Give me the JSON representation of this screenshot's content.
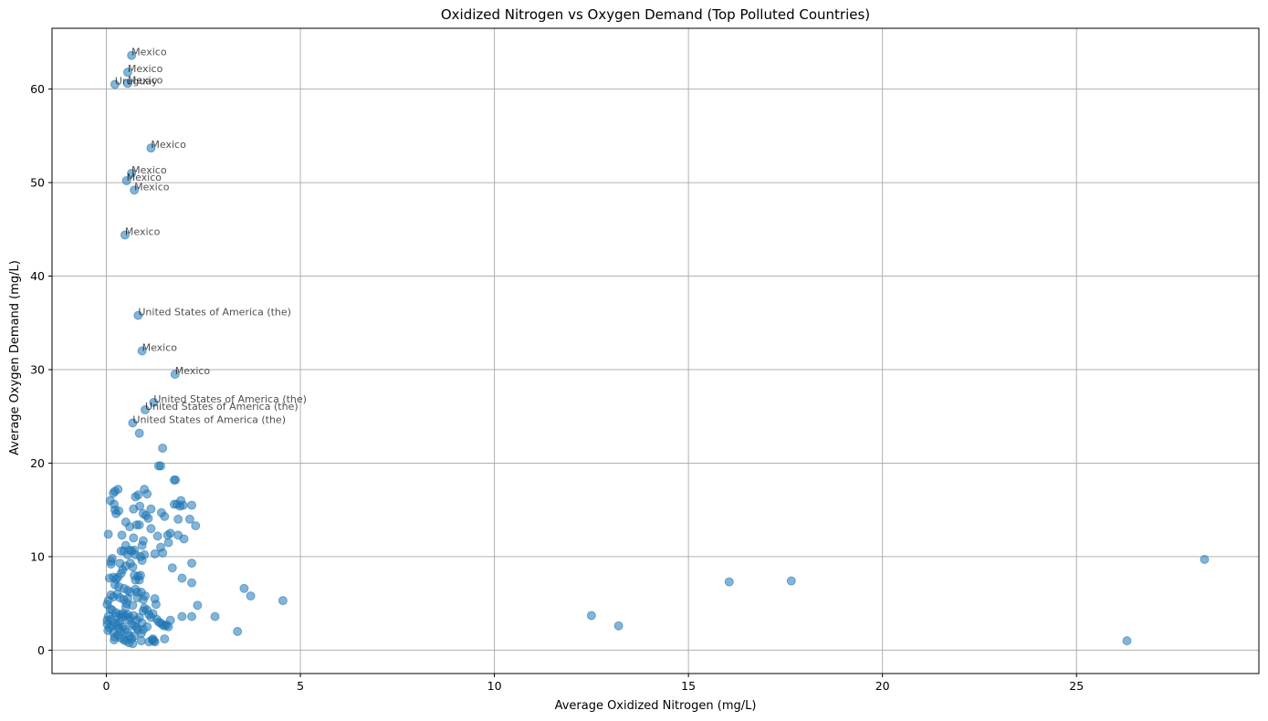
{
  "chart_data": {
    "type": "scatter",
    "title": "Oxidized Nitrogen vs Oxygen Demand (Top Polluted Countries)",
    "xlabel": "Average Oxidized Nitrogen (mg/L)",
    "ylabel": "Average Oxygen Demand (mg/L)",
    "xlim": [
      -1.4,
      29.7
    ],
    "ylim": [
      -2.5,
      66.5
    ],
    "xticks": [
      0,
      5,
      10,
      15,
      20,
      25
    ],
    "yticks": [
      0,
      10,
      20,
      30,
      40,
      50,
      60
    ],
    "grid": true,
    "marker_color": "#1f77b4",
    "marker_opacity": 0.55,
    "annotated_points": [
      {
        "x": 0.65,
        "y": 63.6,
        "label": "Mexico"
      },
      {
        "x": 0.55,
        "y": 61.8,
        "label": "Mexico"
      },
      {
        "x": 0.55,
        "y": 60.6,
        "label": "Mexico"
      },
      {
        "x": 0.22,
        "y": 60.5,
        "label": "Uruguay"
      },
      {
        "x": 1.15,
        "y": 53.7,
        "label": "Mexico"
      },
      {
        "x": 0.65,
        "y": 51.0,
        "label": "Mexico"
      },
      {
        "x": 0.52,
        "y": 50.2,
        "label": "Mexico"
      },
      {
        "x": 0.72,
        "y": 49.2,
        "label": "Mexico"
      },
      {
        "x": 0.48,
        "y": 44.4,
        "label": "Mexico"
      },
      {
        "x": 0.82,
        "y": 35.8,
        "label": "United States of America (the)"
      },
      {
        "x": 0.92,
        "y": 32.0,
        "label": "Mexico"
      },
      {
        "x": 1.77,
        "y": 29.5,
        "label": "Mexico"
      },
      {
        "x": 1.22,
        "y": 26.5,
        "label": "United States of America (the)"
      },
      {
        "x": 1.0,
        "y": 25.7,
        "label": "United States of America (the)"
      },
      {
        "x": 0.68,
        "y": 24.3,
        "label": "United States of America (the)"
      }
    ],
    "points": [
      [
        0.85,
        23.2
      ],
      [
        1.45,
        21.6
      ],
      [
        1.35,
        19.7
      ],
      [
        1.4,
        19.7
      ],
      [
        1.75,
        18.2
      ],
      [
        1.78,
        18.2
      ],
      [
        0.22,
        17.0
      ],
      [
        0.3,
        17.2
      ],
      [
        0.18,
        16.8
      ],
      [
        0.98,
        17.2
      ],
      [
        0.82,
        16.6
      ],
      [
        0.75,
        16.4
      ],
      [
        0.1,
        16.0
      ],
      [
        0.2,
        15.6
      ],
      [
        0.22,
        15.0
      ],
      [
        0.25,
        14.6
      ],
      [
        0.32,
        14.9
      ],
      [
        0.86,
        15.4
      ],
      [
        1.05,
        16.7
      ],
      [
        1.15,
        15.1
      ],
      [
        0.7,
        15.1
      ],
      [
        1.42,
        14.7
      ],
      [
        1.5,
        14.3
      ],
      [
        1.58,
        12.3
      ],
      [
        1.65,
        12.5
      ],
      [
        1.9,
        15.4
      ],
      [
        1.92,
        16.0
      ],
      [
        1.98,
        15.5
      ],
      [
        2.2,
        15.5
      ],
      [
        1.75,
        15.6
      ],
      [
        1.82,
        15.6
      ],
      [
        1.85,
        14.0
      ],
      [
        2.15,
        14.0
      ],
      [
        2.3,
        13.3
      ],
      [
        2.0,
        11.9
      ],
      [
        1.85,
        12.3
      ],
      [
        0.95,
        14.6
      ],
      [
        1.02,
        14.4
      ],
      [
        1.08,
        14.1
      ],
      [
        0.6,
        13.2
      ],
      [
        0.5,
        13.7
      ],
      [
        0.78,
        13.4
      ],
      [
        0.85,
        13.4
      ],
      [
        1.15,
        13.0
      ],
      [
        1.32,
        12.2
      ],
      [
        1.45,
        10.4
      ],
      [
        1.6,
        11.5
      ],
      [
        1.4,
        11.0
      ],
      [
        1.25,
        10.3
      ],
      [
        1.7,
        8.8
      ],
      [
        2.2,
        9.3
      ],
      [
        1.95,
        7.7
      ],
      [
        2.2,
        7.2
      ],
      [
        2.35,
        4.8
      ],
      [
        2.2,
        3.6
      ],
      [
        1.95,
        3.6
      ],
      [
        2.8,
        3.6
      ],
      [
        3.38,
        2.0
      ],
      [
        3.55,
        6.6
      ],
      [
        3.72,
        5.8
      ],
      [
        4.55,
        5.3
      ],
      [
        0.05,
        12.4
      ],
      [
        0.4,
        12.3
      ],
      [
        0.7,
        12.0
      ],
      [
        0.95,
        11.7
      ],
      [
        0.92,
        11.2
      ],
      [
        0.6,
        10.7
      ],
      [
        0.65,
        10.6
      ],
      [
        0.72,
        10.7
      ],
      [
        0.45,
        10.6
      ],
      [
        0.5,
        11.2
      ],
      [
        0.38,
        10.6
      ],
      [
        0.55,
        10.2
      ],
      [
        0.75,
        10.2
      ],
      [
        0.88,
        10.0
      ],
      [
        0.98,
        10.2
      ],
      [
        0.92,
        9.6
      ],
      [
        0.62,
        9.3
      ],
      [
        0.68,
        8.9
      ],
      [
        0.5,
        9.0
      ],
      [
        0.42,
        8.6
      ],
      [
        0.35,
        9.3
      ],
      [
        0.15,
        9.8
      ],
      [
        0.12,
        9.5
      ],
      [
        0.12,
        9.2
      ],
      [
        0.38,
        8.2
      ],
      [
        0.3,
        7.8
      ],
      [
        0.25,
        7.6
      ],
      [
        0.18,
        7.8
      ],
      [
        0.08,
        7.7
      ],
      [
        0.22,
        7.0
      ],
      [
        0.32,
        6.8
      ],
      [
        0.45,
        6.6
      ],
      [
        0.55,
        6.4
      ],
      [
        0.62,
        6.2
      ],
      [
        0.75,
        6.5
      ],
      [
        0.8,
        6.2
      ],
      [
        0.85,
        7.5
      ],
      [
        0.82,
        7.9
      ],
      [
        0.88,
        8.0
      ],
      [
        0.72,
        8.0
      ],
      [
        0.75,
        7.5
      ],
      [
        0.9,
        6.2
      ],
      [
        1.0,
        5.8
      ],
      [
        0.95,
        5.4
      ],
      [
        0.8,
        5.6
      ],
      [
        0.68,
        4.8
      ],
      [
        0.55,
        5.5
      ],
      [
        0.52,
        5.0
      ],
      [
        0.45,
        5.4
      ],
      [
        0.35,
        5.6
      ],
      [
        0.28,
        6.0
      ],
      [
        0.18,
        5.7
      ],
      [
        0.12,
        5.9
      ],
      [
        0.05,
        5.3
      ],
      [
        0.02,
        4.9
      ],
      [
        0.1,
        4.4
      ],
      [
        0.15,
        4.3
      ],
      [
        0.25,
        4.0
      ],
      [
        0.35,
        3.8
      ],
      [
        0.4,
        3.5
      ],
      [
        0.48,
        3.7
      ],
      [
        0.55,
        3.8
      ],
      [
        0.6,
        3.5
      ],
      [
        0.7,
        3.7
      ],
      [
        0.78,
        3.2
      ],
      [
        0.85,
        3.5
      ],
      [
        0.95,
        4.2
      ],
      [
        0.98,
        4.5
      ],
      [
        1.05,
        4.3
      ],
      [
        1.1,
        3.8
      ],
      [
        1.15,
        3.5
      ],
      [
        1.2,
        3.9
      ],
      [
        1.3,
        3.3
      ],
      [
        1.35,
        3.0
      ],
      [
        1.4,
        2.9
      ],
      [
        1.45,
        2.7
      ],
      [
        1.5,
        2.6
      ],
      [
        1.55,
        2.7
      ],
      [
        1.6,
        2.5
      ],
      [
        1.65,
        3.2
      ],
      [
        1.25,
        5.5
      ],
      [
        1.28,
        4.9
      ],
      [
        1.05,
        2.5
      ],
      [
        0.95,
        2.2
      ],
      [
        0.92,
        2.9
      ],
      [
        0.9,
        1.8
      ],
      [
        0.82,
        2.2
      ],
      [
        0.78,
        2.4
      ],
      [
        0.72,
        1.5
      ],
      [
        0.65,
        1.2
      ],
      [
        0.6,
        1.5
      ],
      [
        0.55,
        1.9
      ],
      [
        0.48,
        2.2
      ],
      [
        0.42,
        2.5
      ],
      [
        0.38,
        2.0
      ],
      [
        0.32,
        2.3
      ],
      [
        0.28,
        2.7
      ],
      [
        0.22,
        2.9
      ],
      [
        0.15,
        2.6
      ],
      [
        0.08,
        2.4
      ],
      [
        0.04,
        2.1
      ],
      [
        0.02,
        2.8
      ],
      [
        0.02,
        3.2
      ],
      [
        0.05,
        3.6
      ],
      [
        0.12,
        3.3
      ],
      [
        0.18,
        1.9
      ],
      [
        0.22,
        1.4
      ],
      [
        0.3,
        1.6
      ],
      [
        0.38,
        1.3
      ],
      [
        0.45,
        1.1
      ],
      [
        0.5,
        1.0
      ],
      [
        0.58,
        0.8
      ],
      [
        0.68,
        0.7
      ],
      [
        0.9,
        1.0
      ],
      [
        1.1,
        0.9
      ],
      [
        1.18,
        1.1
      ],
      [
        1.22,
        1.0
      ],
      [
        1.25,
        0.9
      ],
      [
        1.5,
        1.2
      ],
      [
        1.2,
        1.2
      ],
      [
        0.2,
        1.1
      ],
      [
        0.25,
        3.6
      ],
      [
        0.35,
        3.0
      ],
      [
        0.42,
        3.9
      ],
      [
        0.5,
        4.6
      ],
      [
        0.58,
        3.2
      ],
      [
        0.65,
        2.8
      ],
      [
        0.72,
        2.6
      ],
      [
        12.5,
        3.7
      ],
      [
        13.2,
        2.6
      ],
      [
        16.05,
        7.3
      ],
      [
        17.65,
        7.4
      ],
      [
        26.3,
        1.0
      ],
      [
        28.3,
        9.7
      ]
    ]
  }
}
